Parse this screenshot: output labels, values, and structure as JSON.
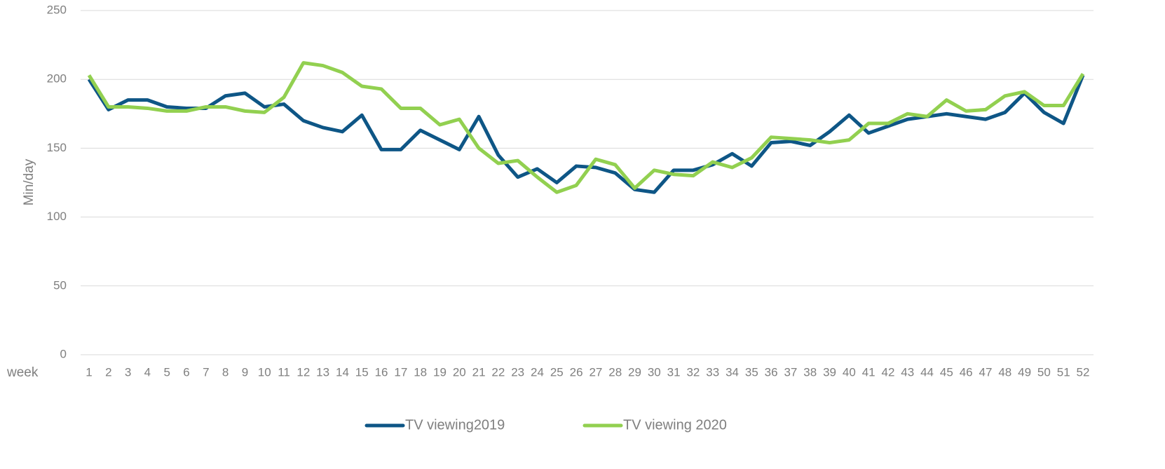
{
  "chart_data": {
    "type": "line",
    "y_label": "Min/day",
    "x_label": "week",
    "x": [
      1,
      2,
      3,
      4,
      5,
      6,
      7,
      8,
      9,
      10,
      11,
      12,
      13,
      14,
      15,
      16,
      17,
      18,
      19,
      20,
      21,
      22,
      23,
      24,
      25,
      26,
      27,
      28,
      29,
      30,
      31,
      32,
      33,
      34,
      35,
      36,
      37,
      38,
      39,
      40,
      41,
      42,
      43,
      44,
      45,
      46,
      47,
      48,
      49,
      50,
      51,
      52
    ],
    "xlim": [
      1,
      52
    ],
    "series": [
      {
        "name": "TV viewing2019",
        "color": "#0e5686",
        "values": [
          200,
          178,
          185,
          185,
          180,
          179,
          179,
          188,
          190,
          180,
          182,
          170,
          165,
          162,
          174,
          149,
          149,
          163,
          156,
          149,
          173,
          145,
          129,
          135,
          125,
          137,
          136,
          132,
          120,
          118,
          134,
          134,
          138,
          146,
          137,
          154,
          155,
          152,
          162,
          174,
          161,
          166,
          171,
          173,
          175,
          173,
          171,
          176,
          190,
          176,
          168,
          203
        ]
      },
      {
        "name": "TV viewing 2020",
        "color": "#92d050",
        "values": [
          203,
          180,
          180,
          179,
          177,
          177,
          180,
          180,
          177,
          176,
          187,
          212,
          210,
          205,
          195,
          193,
          179,
          179,
          167,
          171,
          150,
          139,
          141,
          129,
          118,
          123,
          142,
          138,
          121,
          134,
          131,
          130,
          140,
          136,
          143,
          158,
          157,
          156,
          154,
          156,
          168,
          168,
          175,
          173,
          185,
          177,
          178,
          188,
          191,
          181,
          181,
          204
        ]
      }
    ],
    "ylim": [
      0,
      250
    ],
    "yticks": [
      0,
      50,
      100,
      150,
      200,
      250
    ],
    "grid": true,
    "legend": "bottom"
  }
}
